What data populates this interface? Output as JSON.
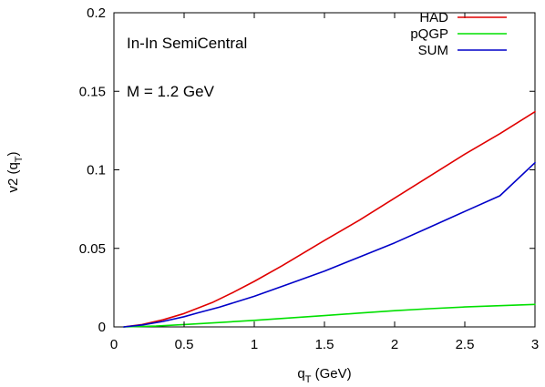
{
  "chart_data": {
    "type": "line",
    "annotations": [
      "In-In SemiCentral",
      "M = 1.2 GeV"
    ],
    "xlabel": {
      "main": "q",
      "sub": "T",
      "rest": " (GeV)"
    },
    "ylabel": {
      "main": "v2 (q",
      "sub": "T",
      "rest": ")"
    },
    "xlim": [
      0,
      3
    ],
    "ylim": [
      0,
      0.2
    ],
    "x_ticks": [
      0,
      0.5,
      1,
      1.5,
      2,
      2.5,
      3
    ],
    "x_tick_labels": [
      "0",
      "0.5",
      "1",
      "1.5",
      "2",
      "2.5",
      "3"
    ],
    "y_ticks": [
      0,
      0.05,
      0.1,
      0.15,
      0.2
    ],
    "y_tick_labels": [
      "0",
      "0.05",
      "0.1",
      "0.15",
      "0.2"
    ],
    "grid": false,
    "legend_position": "top-right",
    "series": [
      {
        "name": "HAD",
        "color": "#e00000",
        "x": [
          0.07,
          0.2,
          0.35,
          0.5,
          0.6,
          0.7,
          0.85,
          1.0,
          1.2,
          1.5,
          1.75,
          2.0,
          2.25,
          2.5,
          2.75,
          3.0
        ],
        "y": [
          0.0,
          0.0015,
          0.0045,
          0.0085,
          0.012,
          0.0155,
          0.022,
          0.029,
          0.039,
          0.055,
          0.068,
          0.082,
          0.096,
          0.11,
          0.123,
          0.137
        ]
      },
      {
        "name": "pQGP",
        "color": "#00e000",
        "x": [
          0.07,
          0.3,
          0.5,
          0.75,
          1.0,
          1.25,
          1.5,
          1.75,
          2.0,
          2.25,
          2.5,
          2.75,
          3.0
        ],
        "y": [
          0.0,
          0.0005,
          0.0015,
          0.0028,
          0.0042,
          0.0057,
          0.0072,
          0.0088,
          0.0103,
          0.0116,
          0.0127,
          0.0135,
          0.0143
        ]
      },
      {
        "name": "SUM",
        "color": "#0000c8",
        "x": [
          0.07,
          0.2,
          0.35,
          0.5,
          0.6,
          0.75,
          1.0,
          1.25,
          1.5,
          1.75,
          2.0,
          2.25,
          2.5,
          2.75,
          3.0
        ],
        "y": [
          0.0,
          0.0012,
          0.0035,
          0.0065,
          0.009,
          0.0125,
          0.0195,
          0.0275,
          0.0355,
          0.0445,
          0.0535,
          0.0635,
          0.0735,
          0.0835,
          0.1045
        ]
      }
    ]
  }
}
